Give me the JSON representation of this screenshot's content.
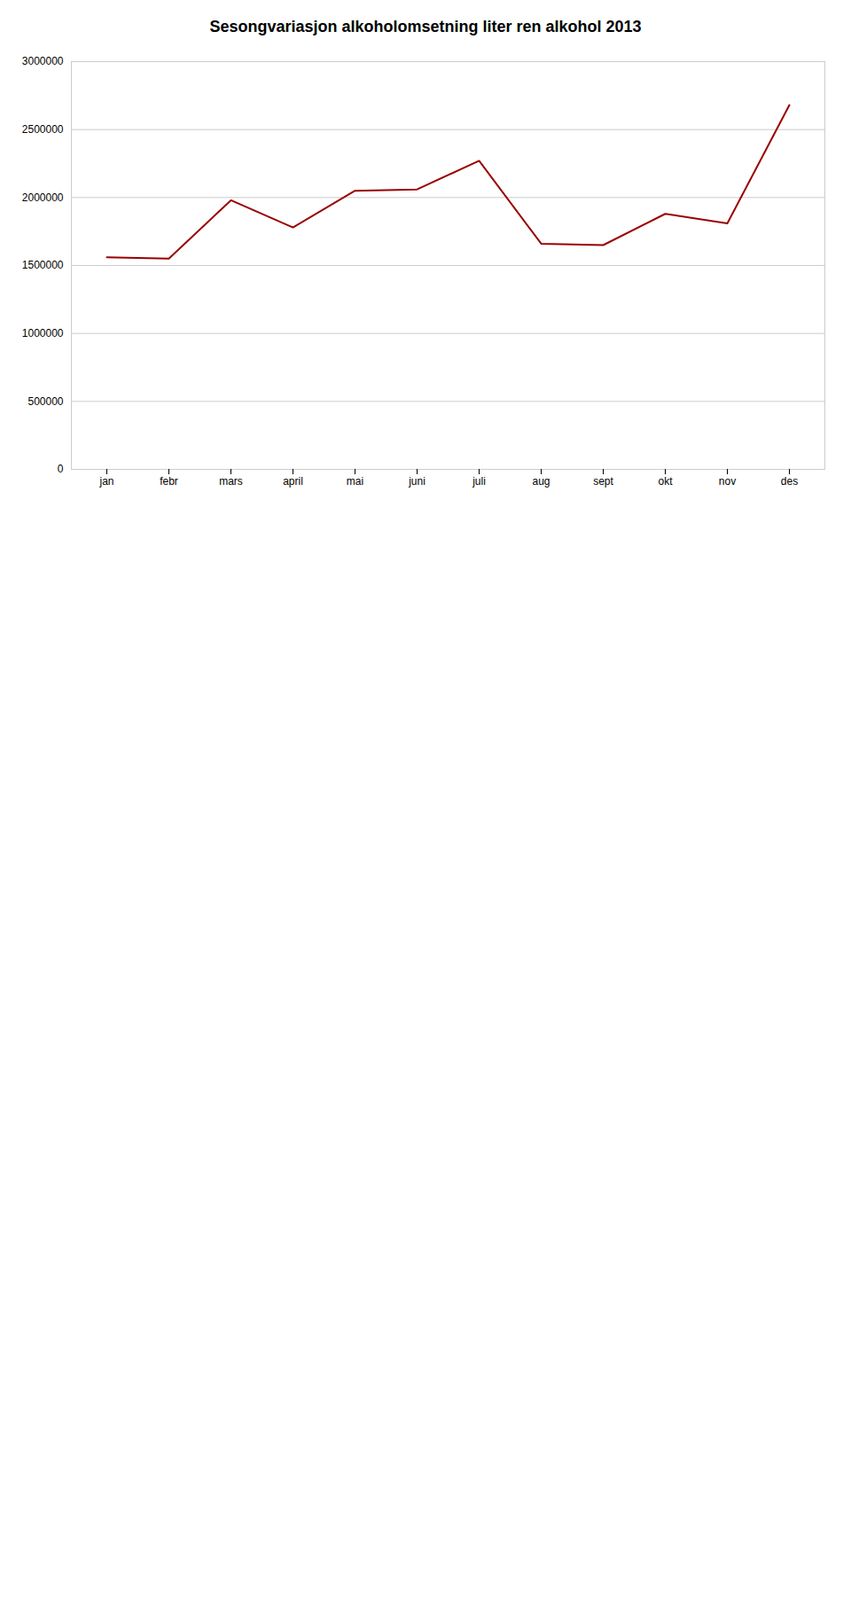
{
  "chart_data": {
    "type": "line",
    "title": "Sesongvariasjon alkoholomsetning liter ren alkohol 2013",
    "categories": [
      "jan",
      "febr",
      "mars",
      "april",
      "mai",
      "juni",
      "juli",
      "aug",
      "sept",
      "okt",
      "nov",
      "des"
    ],
    "values": [
      1560000,
      1550000,
      1980000,
      1780000,
      2050000,
      2060000,
      2270000,
      1660000,
      1650000,
      1880000,
      1810000,
      2680000
    ],
    "color": "#990000",
    "ylim": [
      0,
      3000000
    ],
    "yticks": [
      0,
      500000,
      1000000,
      1500000,
      2000000,
      2500000,
      3000000
    ],
    "grid": true
  }
}
